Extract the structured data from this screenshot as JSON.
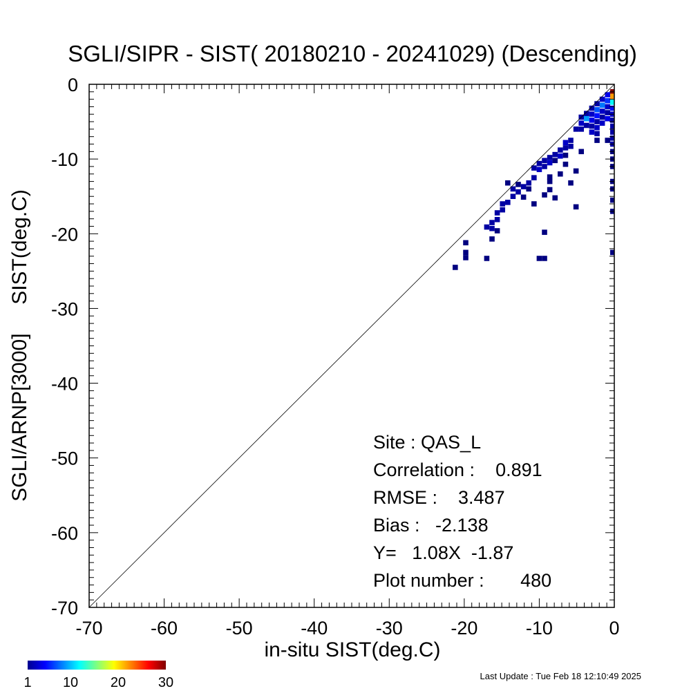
{
  "chart_data": {
    "type": "heatmap",
    "title": "SGLI/SIPR - SIST( 20180210 - 20241029) (Descending)",
    "xlabel": "in-situ SIST(deg.C)",
    "ylabel": "SGLI/ARNP[3000]     SIST(deg.C)",
    "xlim": [
      -70,
      0
    ],
    "ylim": [
      -70,
      0
    ],
    "x_ticks": [
      "-70",
      "-60",
      "-50",
      "-40",
      "-30",
      "-20",
      "-10",
      "0"
    ],
    "y_ticks": [
      "-70",
      "-60",
      "-50",
      "-40",
      "-30",
      "-20",
      "-10",
      "0"
    ],
    "one_to_one_line": true,
    "grid": false,
    "colorbar": {
      "range": [
        1,
        30
      ],
      "tick_labels": [
        "1",
        "10",
        "20",
        "30"
      ],
      "colormap": "jet"
    },
    "stats": {
      "site": "Site : QAS_L",
      "correlation": "Correlation :    0.891",
      "rmse": "RMSE :    3.487",
      "bias": "Bias :   -2.138",
      "regression": "Y=   1.08X  -1.87",
      "plot_number": "Plot number :       480"
    },
    "bin_size": 0.7,
    "cells": [
      [
        -0.2,
        -1.0,
        30
      ],
      [
        -0.2,
        -1.6,
        22
      ],
      [
        -0.9,
        -1.4,
        4
      ],
      [
        -0.2,
        -2.4,
        12
      ],
      [
        -0.9,
        -2.2,
        6
      ],
      [
        -1.6,
        -2.0,
        3
      ],
      [
        -0.2,
        -3.2,
        5
      ],
      [
        -0.9,
        -3.0,
        3
      ],
      [
        -1.6,
        -2.8,
        8
      ],
      [
        -2.3,
        -2.6,
        2
      ],
      [
        -0.2,
        -4.0,
        3
      ],
      [
        -0.9,
        -3.8,
        2
      ],
      [
        -1.6,
        -3.6,
        3
      ],
      [
        -2.3,
        -3.4,
        7
      ],
      [
        -3.0,
        -3.2,
        2
      ],
      [
        -0.2,
        -4.8,
        2
      ],
      [
        -0.9,
        -4.6,
        4
      ],
      [
        -1.6,
        -4.4,
        2
      ],
      [
        -2.3,
        -4.2,
        5
      ],
      [
        -3.0,
        -4.0,
        3
      ],
      [
        -3.7,
        -3.9,
        2
      ],
      [
        -0.2,
        -5.6,
        2
      ],
      [
        -1.6,
        -5.2,
        3
      ],
      [
        -2.3,
        -5.0,
        2
      ],
      [
        -3.0,
        -4.8,
        4
      ],
      [
        -3.7,
        -4.6,
        9
      ],
      [
        -4.4,
        -4.4,
        2
      ],
      [
        -0.2,
        -6.4,
        2
      ],
      [
        -2.3,
        -5.8,
        3
      ],
      [
        -3.0,
        -5.6,
        2
      ],
      [
        -3.7,
        -5.5,
        2
      ],
      [
        -4.4,
        -5.2,
        3
      ],
      [
        -0.2,
        -7.2,
        2
      ],
      [
        -0.2,
        -8.0,
        2
      ],
      [
        -2.3,
        -6.6,
        2
      ],
      [
        -3.0,
        -6.4,
        3
      ],
      [
        -4.4,
        -6.0,
        2
      ],
      [
        -5.1,
        -6.0,
        2
      ],
      [
        -5.8,
        -7.5,
        2
      ],
      [
        -6.5,
        -7.8,
        3
      ],
      [
        -5.8,
        -8.3,
        2
      ],
      [
        -6.5,
        -8.5,
        2
      ],
      [
        -7.2,
        -8.8,
        2
      ],
      [
        -7.2,
        -9.6,
        3
      ],
      [
        -7.9,
        -9.4,
        2
      ],
      [
        -8.6,
        -9.8,
        2
      ],
      [
        -8.6,
        -10.5,
        3
      ],
      [
        -9.3,
        -10.2,
        2
      ],
      [
        -9.3,
        -11.0,
        2
      ],
      [
        -10.0,
        -10.6,
        2
      ],
      [
        -10.0,
        -11.4,
        3
      ],
      [
        -10.7,
        -11.2,
        2
      ],
      [
        -7.9,
        -10.2,
        1
      ],
      [
        -6.5,
        -9.5,
        1
      ],
      [
        -6.5,
        -10.7,
        1
      ],
      [
        -4.4,
        -9.0,
        1
      ],
      [
        -7.2,
        -12.0,
        1
      ],
      [
        -5.1,
        -11.6,
        1
      ],
      [
        -8.6,
        -12.4,
        1
      ],
      [
        -8.6,
        -13.0,
        1
      ],
      [
        -10.7,
        -12.5,
        2
      ],
      [
        -11.4,
        -13.2,
        2
      ],
      [
        -12.1,
        -13.7,
        2
      ],
      [
        -12.8,
        -14.4,
        2
      ],
      [
        -11.4,
        -14.0,
        1
      ],
      [
        -12.8,
        -13.4,
        1
      ],
      [
        -13.5,
        -14.0,
        2
      ],
      [
        -12.1,
        -15.1,
        1
      ],
      [
        -13.5,
        -15.0,
        2
      ],
      [
        -14.2,
        -15.8,
        2
      ],
      [
        -14.9,
        -16.0,
        2
      ],
      [
        -14.9,
        -16.8,
        2
      ],
      [
        -15.6,
        -17.2,
        2
      ],
      [
        -15.6,
        -18.1,
        2
      ],
      [
        -16.3,
        -18.5,
        2
      ],
      [
        -16.3,
        -19.3,
        2
      ],
      [
        -17.0,
        -19.1,
        2
      ],
      [
        -15.6,
        -19.6,
        1
      ],
      [
        -10.7,
        -16.0,
        1
      ],
      [
        -9.3,
        -14.8,
        1
      ],
      [
        -8.6,
        -14.1,
        1
      ],
      [
        -7.9,
        -15.2,
        1
      ],
      [
        -5.8,
        -13.2,
        1
      ],
      [
        -5.1,
        -16.4,
        1
      ],
      [
        -14.2,
        -13.2,
        1
      ],
      [
        -9.3,
        -19.8,
        1
      ],
      [
        -16.3,
        -20.7,
        1
      ],
      [
        -19.8,
        -21.2,
        1
      ],
      [
        -19.8,
        -22.5,
        1
      ],
      [
        -19.8,
        -23.2,
        1
      ],
      [
        -17.0,
        -23.3,
        1
      ],
      [
        -9.3,
        -23.3,
        1
      ],
      [
        -10.0,
        -23.3,
        1
      ],
      [
        -21.2,
        -24.5,
        1
      ],
      [
        -0.2,
        -9.0,
        1
      ],
      [
        -0.2,
        -10.0,
        1
      ],
      [
        -0.2,
        -11.0,
        1
      ],
      [
        -0.2,
        -13.0,
        1
      ],
      [
        -0.2,
        -14.0,
        1
      ],
      [
        -0.2,
        -15.5,
        1
      ],
      [
        -0.2,
        -17.0,
        1
      ],
      [
        -0.2,
        -22.5,
        1
      ],
      [
        -0.9,
        -7.5,
        1
      ],
      [
        -2.3,
        -7.5,
        1
      ]
    ]
  },
  "footer": {
    "last_update": "Last Update : Tue Feb 18 12:10:49 2025"
  }
}
